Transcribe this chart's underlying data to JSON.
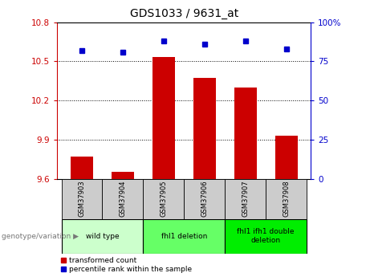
{
  "title": "GDS1033 / 9631_at",
  "samples": [
    "GSM37903",
    "GSM37904",
    "GSM37905",
    "GSM37906",
    "GSM37907",
    "GSM37908"
  ],
  "red_values": [
    9.77,
    9.65,
    10.53,
    10.37,
    10.3,
    9.93
  ],
  "blue_values": [
    82,
    81,
    88,
    86,
    88,
    83
  ],
  "ylim_left": [
    9.6,
    10.8
  ],
  "ylim_right": [
    0,
    100
  ],
  "yticks_left": [
    9.6,
    9.9,
    10.2,
    10.5,
    10.8
  ],
  "yticks_right": [
    0,
    25,
    50,
    75,
    100
  ],
  "ytick_labels_left": [
    "9.6",
    "9.9",
    "10.2",
    "10.5",
    "10.8"
  ],
  "ytick_labels_right": [
    "0",
    "25",
    "50",
    "75",
    "100"
  ],
  "groups": [
    {
      "label": "wild type",
      "samples": [
        0,
        1
      ],
      "color": "#ccffcc"
    },
    {
      "label": "fhl1 deletion",
      "samples": [
        2,
        3
      ],
      "color": "#66ff66"
    },
    {
      "label": "fhl1 ifh1 double\ndeletion",
      "samples": [
        4,
        5
      ],
      "color": "#00ee00"
    }
  ],
  "bar_color": "#cc0000",
  "dot_color": "#0000cc",
  "sample_bg_color": "#cccccc",
  "legend_red_label": "transformed count",
  "legend_blue_label": "percentile rank within the sample",
  "genotype_label": "genotype/variation",
  "right_top_label": "100%"
}
